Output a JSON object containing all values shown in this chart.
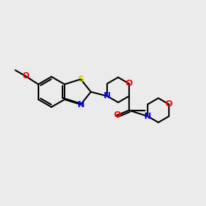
{
  "background_color": "#ebebeb",
  "line_color": "#000000",
  "bond_width": 1.6,
  "atom_colors": {
    "S": "#cccc00",
    "N": "#0000ff",
    "O": "#ff0000",
    "C": "#000000"
  },
  "font_size": 8.5,
  "figsize": [
    3.0,
    3.0
  ],
  "dpi": 100
}
